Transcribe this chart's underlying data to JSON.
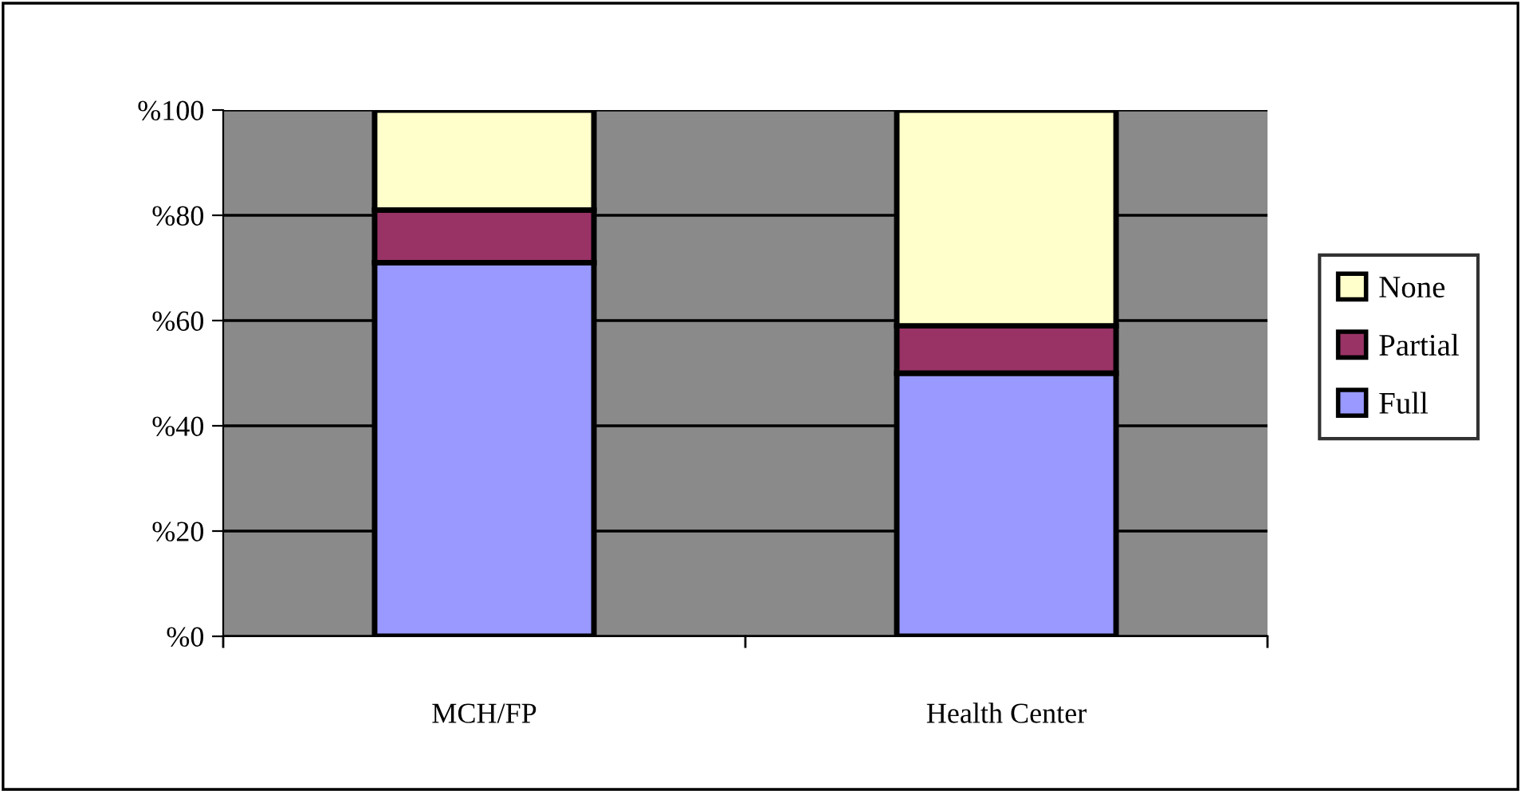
{
  "chart_data": {
    "type": "bar",
    "stacked": true,
    "categories": [
      "MCH/FP",
      "Health Center"
    ],
    "series": [
      {
        "name": "Full",
        "color": "#9999ff",
        "values": [
          71,
          50
        ]
      },
      {
        "name": "Partial",
        "color": "#993366",
        "values": [
          10,
          9
        ]
      },
      {
        "name": "None",
        "color": "#ffffcc",
        "values": [
          19,
          41
        ]
      }
    ],
    "ylim": [
      0,
      100
    ],
    "yticks": [
      {
        "value": 0,
        "label": "%0"
      },
      {
        "value": 20,
        "label": "%20"
      },
      {
        "value": 40,
        "label": "%40"
      },
      {
        "value": 60,
        "label": "%60"
      },
      {
        "value": 80,
        "label": "%80"
      },
      {
        "value": 100,
        "label": "%100"
      }
    ],
    "grid": "y",
    "legend": "right"
  }
}
